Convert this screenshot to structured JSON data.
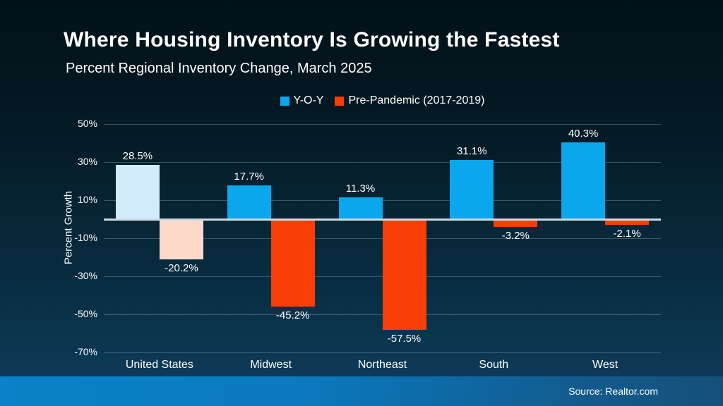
{
  "header": {
    "title": "Where Housing Inventory Is Growing the Fastest",
    "subtitle": "Percent Regional Inventory Change, March 2025"
  },
  "chart_data": {
    "type": "bar",
    "title": "Where Housing Inventory Is Growing the Fastest",
    "subtitle": "Percent Regional Inventory Change, March 2025",
    "categories": [
      "United States",
      "Midwest",
      "Northeast",
      "South",
      "West"
    ],
    "series": [
      {
        "name": "Y-O-Y",
        "color": "#0ba7ec",
        "bar_colors": [
          "#d3ecfc",
          "#0ba7ec",
          "#0ba7ec",
          "#0ba7ec",
          "#0ba7ec"
        ],
        "values": [
          28.5,
          17.7,
          11.3,
          31.1,
          40.3
        ]
      },
      {
        "name": "Pre-Pandemic (2017-2019)",
        "color": "#f93e05",
        "bar_colors": [
          "#fdd9ca",
          "#f93e05",
          "#f93e05",
          "#f93e05",
          "#f93e05"
        ],
        "values": [
          -20.2,
          -45.2,
          -57.5,
          -3.2,
          -2.1
        ]
      }
    ],
    "ylabel": "Percent Growth",
    "ylim": [
      -70,
      50
    ],
    "yticks": [
      50,
      30,
      10,
      -10,
      -30,
      -50,
      -70
    ],
    "grid": true,
    "legend_position": "top"
  },
  "footer": {
    "source": "Source: Realtor.com"
  },
  "colors": {
    "background_top": "#021119",
    "background_bottom": "#0d3e5e",
    "yoy_blue": "#0ba7ec",
    "yoy_blue_muted": "#d3ecfc",
    "prepandemic_red": "#f93e05",
    "prepandemic_red_muted": "#fdd9ca",
    "zero_line": "#ccd8de",
    "footer_band_left": "#0a81c8",
    "footer_band_right": "#155078",
    "text": "#ffffff"
  }
}
